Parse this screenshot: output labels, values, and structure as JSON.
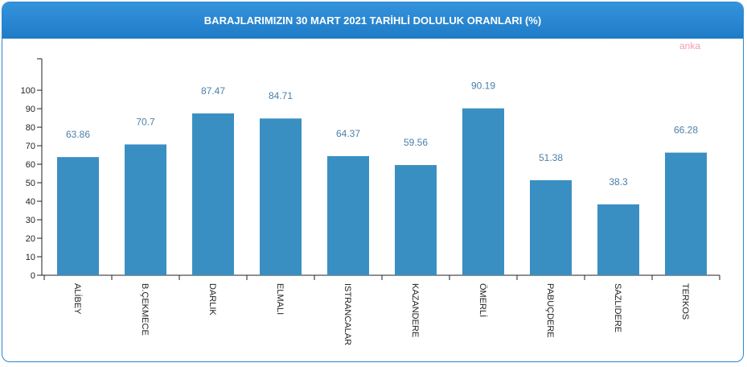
{
  "chart_data": {
    "type": "bar",
    "title": "BARAJLARIMIZIN 30 MART 2021 TARİHLİ DOLULUK ORANLARI (%)",
    "watermark": "anka",
    "categories": [
      "ALİBEY",
      "B.ÇEKMECE",
      "DARLIK",
      "ELMALI",
      "ISTRANCALAR",
      "KAZANDERE",
      "ÖMERLİ",
      "PABUÇDERE",
      "SAZLIDERE",
      "TERKOS"
    ],
    "values": [
      63.86,
      70.7,
      87.47,
      84.71,
      64.37,
      59.56,
      90.19,
      51.38,
      38.3,
      66.28
    ],
    "color": "#3a8fc2",
    "ylim": [
      0,
      117
    ],
    "yticks": [
      0,
      10,
      20,
      30,
      40,
      50,
      60,
      70,
      80,
      90,
      100
    ]
  }
}
